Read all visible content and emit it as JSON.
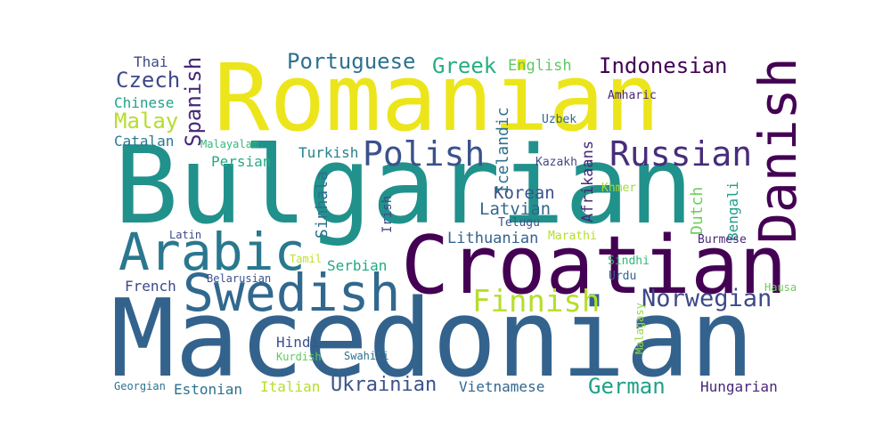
{
  "words": [
    {
      "text": "Romanian",
      "color": "#ece51b",
      "orientation": "horizontal"
    },
    {
      "text": "Bulgarian",
      "color": "#21918c",
      "orientation": "horizontal"
    },
    {
      "text": "Macedonian",
      "color": "#33638d",
      "orientation": "horizontal"
    },
    {
      "text": "Croatian",
      "color": "#440154",
      "orientation": "horizontal"
    },
    {
      "text": "Danish",
      "color": "#440154",
      "orientation": "vertical"
    },
    {
      "text": "Swedish",
      "color": "#31688e",
      "orientation": "horizontal"
    },
    {
      "text": "Arabic",
      "color": "#2a788e",
      "orientation": "horizontal"
    },
    {
      "text": "Polish",
      "color": "#3b528b",
      "orientation": "horizontal"
    },
    {
      "text": "Russian",
      "color": "#472d7b",
      "orientation": "horizontal"
    },
    {
      "text": "Finnish",
      "color": "#b5de2b",
      "orientation": "horizontal"
    },
    {
      "text": "Norwegian",
      "color": "#3e4989",
      "orientation": "horizontal"
    },
    {
      "text": "Portuguese",
      "color": "#2c728e",
      "orientation": "horizontal"
    },
    {
      "text": "Indonesian",
      "color": "#440154",
      "orientation": "horizontal"
    },
    {
      "text": "Greek",
      "color": "#28ae80",
      "orientation": "horizontal"
    },
    {
      "text": "Czech",
      "color": "#3e4989",
      "orientation": "horizontal"
    },
    {
      "text": "Spanish",
      "color": "#482878",
      "orientation": "vertical"
    },
    {
      "text": "Malay",
      "color": "#b5de2b",
      "orientation": "horizontal"
    },
    {
      "text": "German",
      "color": "#1fa187",
      "orientation": "horizontal"
    },
    {
      "text": "Ukrainian",
      "color": "#3b528b",
      "orientation": "horizontal"
    },
    {
      "text": "Korean",
      "color": "#3b528b",
      "orientation": "horizontal"
    },
    {
      "text": "Latvian",
      "color": "#31688e",
      "orientation": "horizontal"
    },
    {
      "text": "Lithuanian",
      "color": "#33638d",
      "orientation": "horizontal"
    },
    {
      "text": "English",
      "color": "#5ec962",
      "orientation": "horizontal"
    },
    {
      "text": "Thai",
      "color": "#3e4989",
      "orientation": "horizontal"
    },
    {
      "text": "Chinese",
      "color": "#20a486",
      "orientation": "horizontal"
    },
    {
      "text": "Catalan",
      "color": "#2a788e",
      "orientation": "horizontal"
    },
    {
      "text": "Malayalam",
      "color": "#35b779",
      "orientation": "horizontal"
    },
    {
      "text": "Persian",
      "color": "#25ab82",
      "orientation": "horizontal"
    },
    {
      "text": "Turkish",
      "color": "#26828e",
      "orientation": "horizontal"
    },
    {
      "text": "Sinhala",
      "color": "#2d708e",
      "orientation": "vertical"
    },
    {
      "text": "Icelandic",
      "color": "#2c728e",
      "orientation": "vertical"
    },
    {
      "text": "Afrikaans",
      "color": "#482878",
      "orientation": "vertical"
    },
    {
      "text": "Dutch",
      "color": "#6ece58",
      "orientation": "vertical"
    },
    {
      "text": "Bengali",
      "color": "#1f9e89",
      "orientation": "vertical"
    },
    {
      "text": "Irish",
      "color": "#3e4989",
      "orientation": "vertical"
    },
    {
      "text": "Malagasy",
      "color": "#95d840",
      "orientation": "vertical"
    },
    {
      "text": "Amharic",
      "color": "#482878",
      "orientation": "horizontal"
    },
    {
      "text": "Uzbek",
      "color": "#31688e",
      "orientation": "horizontal"
    },
    {
      "text": "Kazakh",
      "color": "#3e4989",
      "orientation": "horizontal"
    },
    {
      "text": "Khmer",
      "color": "#a0da39",
      "orientation": "horizontal"
    },
    {
      "text": "Telugu",
      "color": "#3b528b",
      "orientation": "horizontal"
    },
    {
      "text": "Marathi",
      "color": "#b5de2b",
      "orientation": "horizontal"
    },
    {
      "text": "Burmese",
      "color": "#482878",
      "orientation": "horizontal"
    },
    {
      "text": "Sindhi",
      "color": "#35b779",
      "orientation": "horizontal"
    },
    {
      "text": "Urdu",
      "color": "#33638d",
      "orientation": "horizontal"
    },
    {
      "text": "Hausa",
      "color": "#6ece58",
      "orientation": "horizontal"
    },
    {
      "text": "Latin",
      "color": "#3e4989",
      "orientation": "horizontal"
    },
    {
      "text": "Tamil",
      "color": "#bddf26",
      "orientation": "horizontal"
    },
    {
      "text": "Serbian",
      "color": "#22a884",
      "orientation": "horizontal"
    },
    {
      "text": "Belarusian",
      "color": "#3b528b",
      "orientation": "horizontal"
    },
    {
      "text": "French",
      "color": "#3e4989",
      "orientation": "horizontal"
    },
    {
      "text": "Hindi",
      "color": "#3b528b",
      "orientation": "horizontal"
    },
    {
      "text": "Kurdish",
      "color": "#5ec962",
      "orientation": "horizontal"
    },
    {
      "text": "Swahili",
      "color": "#2c728e",
      "orientation": "horizontal"
    },
    {
      "text": "Vietnamese",
      "color": "#31688e",
      "orientation": "horizontal"
    },
    {
      "text": "Hungarian",
      "color": "#482878",
      "orientation": "horizontal"
    },
    {
      "text": "Georgian",
      "color": "#2c728e",
      "orientation": "horizontal"
    },
    {
      "text": "Estonian",
      "color": "#2c728e",
      "orientation": "horizontal"
    },
    {
      "text": "Italian",
      "color": "#b5de2b",
      "orientation": "horizontal"
    }
  ]
}
